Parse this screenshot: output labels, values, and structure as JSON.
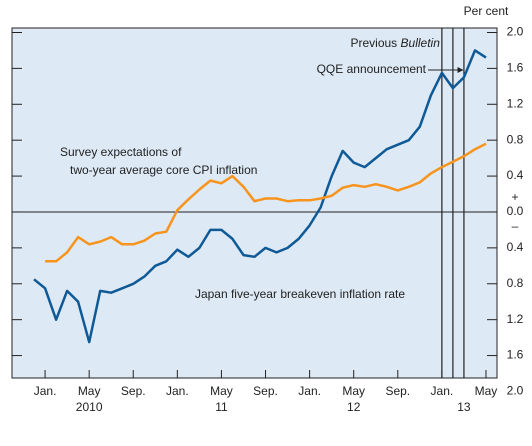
{
  "chart_data": {
    "type": "line",
    "unit_label": "Per cent",
    "x": [
      "2009-12",
      "2010-01",
      "2010-02",
      "2010-03",
      "2010-04",
      "2010-05",
      "2010-06",
      "2010-07",
      "2010-08",
      "2010-09",
      "2010-10",
      "2010-11",
      "2010-12",
      "2011-01",
      "2011-02",
      "2011-03",
      "2011-04",
      "2011-05",
      "2011-06",
      "2011-07",
      "2011-08",
      "2011-09",
      "2011-10",
      "2011-11",
      "2011-12",
      "2012-01",
      "2012-02",
      "2012-03",
      "2012-04",
      "2012-05",
      "2012-06",
      "2012-07",
      "2012-08",
      "2012-09",
      "2012-10",
      "2012-11",
      "2012-12",
      "2013-01",
      "2013-02",
      "2013-03",
      "2013-04",
      "2013-05"
    ],
    "series": [
      {
        "name": "Japan five-year breakeven inflation rate",
        "color": "#0f5a96",
        "values": [
          -0.75,
          -0.85,
          -1.2,
          -0.88,
          -1.0,
          -1.45,
          -0.88,
          -0.9,
          -0.85,
          -0.8,
          -0.72,
          -0.6,
          -0.55,
          -0.42,
          -0.5,
          -0.4,
          -0.2,
          -0.2,
          -0.3,
          -0.48,
          -0.5,
          -0.4,
          -0.45,
          -0.4,
          -0.3,
          -0.15,
          0.05,
          0.4,
          0.68,
          0.55,
          0.5,
          0.6,
          0.7,
          0.75,
          0.8,
          0.95,
          1.3,
          1.55,
          1.38,
          1.5,
          1.8,
          1.72
        ]
      },
      {
        "name": "Survey expectations of two-year average core CPI inflation",
        "name_lines": [
          "Survey expectations of",
          "two-year average core CPI inflation"
        ],
        "color": "#f7941d",
        "values": [
          null,
          -0.55,
          -0.55,
          -0.45,
          -0.28,
          -0.36,
          -0.33,
          -0.28,
          -0.36,
          -0.36,
          -0.32,
          -0.24,
          -0.22,
          0.02,
          0.14,
          0.25,
          0.35,
          0.32,
          0.4,
          0.28,
          0.12,
          0.15,
          0.15,
          0.12,
          0.13,
          0.13,
          0.15,
          0.18,
          0.27,
          0.3,
          0.28,
          0.31,
          0.28,
          0.24,
          0.28,
          0.33,
          0.43,
          0.5,
          0.56,
          0.62,
          0.7,
          0.76
        ]
      }
    ],
    "xlim": [
      "2009-10",
      "2013-06"
    ],
    "xticks": [
      {
        "value": "2010-01",
        "label": "Jan."
      },
      {
        "value": "2010-05",
        "label": "May"
      },
      {
        "value": "2010-09",
        "label": "Sep."
      },
      {
        "value": "2011-01",
        "label": "Jan."
      },
      {
        "value": "2011-05",
        "label": "May"
      },
      {
        "value": "2011-09",
        "label": "Sep."
      },
      {
        "value": "2012-01",
        "label": "Jan."
      },
      {
        "value": "2012-05",
        "label": "May"
      },
      {
        "value": "2012-09",
        "label": "Sep."
      },
      {
        "value": "2013-01",
        "label": "Jan."
      },
      {
        "value": "2013-05",
        "label": "May"
      }
    ],
    "years": [
      "2010",
      "11",
      "12",
      "13"
    ],
    "ylim": [
      -1.85,
      2.05
    ],
    "yticks": [
      {
        "value": -2.0,
        "label": "2.0"
      },
      {
        "value": -1.6,
        "label": "1.6"
      },
      {
        "value": -1.2,
        "label": "1.2"
      },
      {
        "value": -0.8,
        "label": "0.8"
      },
      {
        "value": -0.4,
        "label": "0.4"
      },
      {
        "value": 0,
        "label": "0.0"
      },
      0.4,
      0.8,
      1.2,
      1.6,
      {
        "value": 2,
        "label": "2.0"
      }
    ],
    "sign_labels": [
      "+",
      "–"
    ],
    "vlines": [
      {
        "x": "2013-01",
        "label": "Previous",
        "label_italic": "Bulletin"
      },
      {
        "x": "2013-02"
      },
      {
        "x": "2013-03",
        "label": "QQE announcement"
      }
    ],
    "background": "#dde9f5"
  }
}
